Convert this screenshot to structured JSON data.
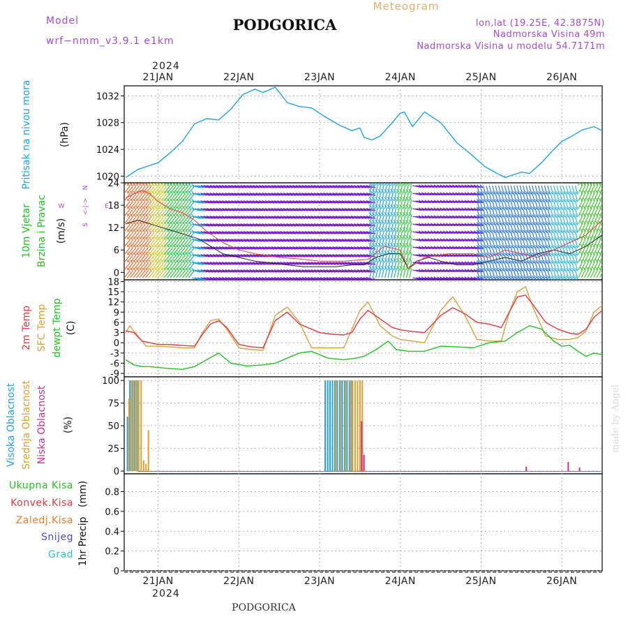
{
  "header": {
    "model_label": "Model",
    "model_name": "wrf−nmm_v3.9.1  e1km",
    "title": "PODGORICA",
    "meteogram_label": "Meteogram",
    "lonlat": "lon,lat (19.25E, 42.3875N)",
    "elevation": "Nadmorska Visina 49m",
    "model_elevation": "Nadmorska Visina u modelu 54.7171m",
    "bottom_title": "PODGORICA",
    "watermark": "made by Angel"
  },
  "time_axis": {
    "year": "2024",
    "days": [
      "21JAN",
      "22JAN",
      "23JAN",
      "24JAN",
      "25JAN",
      "26JAN"
    ],
    "x_range_days": [
      20.58,
      26.5
    ]
  },
  "panel_labels": {
    "pressure": [
      "Pritisak na nivou mora",
      "(hPa)"
    ],
    "wind": [
      "10m Vjetar",
      "Brzina i Pravac",
      "(m/s)"
    ],
    "compass": [
      "N",
      "<-|->",
      "S",
      "W",
      "E"
    ],
    "temp": [
      "2m Temp",
      "SFC Temp",
      "dewpt Temp",
      "(C)"
    ],
    "cloud": [
      "Visoka Oblacnost",
      "Srednja Oblacnost",
      "Niska Oblacnost",
      "(%)"
    ],
    "precip_legend": [
      "Ukupna Kisa",
      "Konvek.Kisa",
      "Zaledj.Kisa",
      "Snijeg",
      "Grad"
    ],
    "precip_axis": [
      "1hr Precip",
      "(mm)"
    ]
  },
  "colors": {
    "pressure": "#1ea4e6",
    "t2m": "#e8383d",
    "tsfc": "#dca03a",
    "dewpt": "#20c520",
    "cloud_high": "#22a0e8",
    "cloud_mid": "#e0a030",
    "cloud_low": "#d22d8c",
    "wind_speed": "#222222",
    "legend_green": "#20c520",
    "legend_red": "#e8383d",
    "legend_orange": "#f07c28",
    "legend_blue": "#4848e8",
    "legend_cyan": "#25c8c8",
    "purple": "#a64ad6"
  },
  "chart_data": [
    {
      "type": "line",
      "panel": "pressure",
      "ylabel": "(hPa)",
      "ylim": [
        1019,
        1033.5
      ],
      "yticks": [
        1020,
        1024,
        1028,
        1032
      ],
      "series": [
        {
          "name": "Pritisak na nivou mora",
          "x": [
            20.6,
            20.65,
            20.75,
            20.85,
            21.0,
            21.15,
            21.3,
            21.45,
            21.6,
            21.75,
            21.9,
            22.05,
            22.2,
            22.3,
            22.45,
            22.6,
            22.75,
            22.9,
            23.05,
            23.25,
            23.4,
            23.5,
            23.55,
            23.65,
            23.75,
            23.9,
            24.0,
            24.05,
            24.15,
            24.3,
            24.5,
            24.7,
            24.9,
            25.05,
            25.2,
            25.3,
            25.4,
            25.5,
            25.6,
            25.75,
            25.9,
            26.0,
            26.1,
            26.25,
            26.4,
            26.5
          ],
          "values": [
            1019.8,
            1020.2,
            1021.0,
            1021.4,
            1022.0,
            1023.5,
            1025.2,
            1027.8,
            1028.6,
            1028.4,
            1030.0,
            1032.2,
            1033.0,
            1032.5,
            1033.3,
            1031.0,
            1030.4,
            1030.2,
            1029.0,
            1027.6,
            1026.8,
            1027.2,
            1025.8,
            1025.4,
            1026.0,
            1028.0,
            1029.4,
            1029.6,
            1027.4,
            1029.6,
            1028.0,
            1025.0,
            1023.0,
            1021.4,
            1020.4,
            1019.8,
            1020.2,
            1020.6,
            1020.4,
            1022.0,
            1024.0,
            1025.2,
            1025.8,
            1026.9,
            1027.4,
            1026.8
          ]
        }
      ]
    },
    {
      "type": "line",
      "panel": "wind",
      "ylabel": "(m/s)",
      "ylim": [
        -2,
        24
      ],
      "yticks": [
        0,
        6,
        12,
        18,
        24
      ],
      "series": [
        {
          "name": "10m wind speed",
          "x": [
            20.6,
            20.75,
            20.9,
            21.05,
            21.2,
            21.35,
            21.5,
            21.65,
            21.8,
            22.0,
            22.2,
            22.4,
            22.6,
            22.8,
            23.0,
            23.2,
            23.4,
            23.55,
            23.7,
            23.85,
            24.0,
            24.1,
            24.2,
            24.35,
            24.5,
            24.7,
            24.9,
            25.1,
            25.3,
            25.5,
            25.7,
            25.9,
            26.1,
            26.3,
            26.5
          ],
          "values": [
            13,
            14,
            13,
            12,
            11,
            10,
            9,
            7,
            5,
            4,
            3,
            2.5,
            2,
            1.5,
            1.5,
            1.5,
            2,
            2,
            4,
            5,
            5,
            1,
            3,
            4,
            3,
            2,
            2,
            3,
            4,
            3,
            5,
            6,
            5,
            7,
            10
          ]
        },
        {
          "name": "wind gust",
          "x": [
            20.6,
            20.7,
            20.8,
            20.9,
            21.0,
            21.15,
            21.3,
            21.45,
            21.6,
            21.8,
            22.0,
            22.2,
            22.5,
            22.8,
            23.0,
            23.3,
            23.6,
            23.8,
            24.0,
            24.1,
            24.3,
            24.6,
            24.9,
            25.1,
            25.3,
            25.5,
            25.7,
            25.9,
            26.1,
            26.3,
            26.5
          ],
          "values": [
            20,
            21,
            22,
            21,
            19,
            17,
            16,
            14,
            11,
            8,
            6,
            5,
            4,
            3.5,
            3,
            3,
            3.5,
            7,
            6,
            1,
            4,
            5,
            5,
            4,
            6,
            5,
            4,
            6,
            8,
            10,
            14
          ]
        }
      ]
    },
    {
      "type": "line",
      "panel": "temperature",
      "ylabel": "(C)",
      "ylim": [
        -10,
        18.5
      ],
      "yticks": [
        -9,
        -6,
        -3,
        0,
        3,
        6,
        9,
        12,
        15,
        18
      ],
      "series": [
        {
          "name": "2m Temp",
          "x": [
            20.6,
            20.7,
            20.8,
            20.9,
            21.0,
            21.15,
            21.3,
            21.45,
            21.55,
            21.65,
            21.75,
            21.85,
            22.0,
            22.15,
            22.3,
            22.45,
            22.6,
            22.75,
            22.9,
            23.0,
            23.15,
            23.3,
            23.4,
            23.5,
            23.6,
            23.75,
            23.9,
            24.0,
            24.15,
            24.3,
            24.5,
            24.65,
            24.8,
            24.95,
            25.1,
            25.25,
            25.35,
            25.45,
            25.55,
            25.65,
            25.8,
            25.95,
            26.1,
            26.2,
            26.3,
            26.4,
            26.5
          ],
          "values": [
            3.5,
            3.0,
            0.5,
            0,
            -0.5,
            -0.5,
            -0.8,
            -1.0,
            2.5,
            5.5,
            6.5,
            4.5,
            -0.5,
            -1.2,
            -1.5,
            6.5,
            9.0,
            5.5,
            4.0,
            3.0,
            2.5,
            2.3,
            3.0,
            7.0,
            9.5,
            7.0,
            4.5,
            3.8,
            3.3,
            3.0,
            8.0,
            10.3,
            8.5,
            6.0,
            5.5,
            4.5,
            9.0,
            13.5,
            14.0,
            11.0,
            6.0,
            4.0,
            2.8,
            2.5,
            4.0,
            7.5,
            9.5
          ]
        },
        {
          "name": "SFC Temp",
          "x": [
            20.6,
            20.65,
            20.75,
            20.85,
            21.0,
            21.15,
            21.3,
            21.45,
            21.55,
            21.65,
            21.75,
            21.85,
            22.0,
            22.15,
            22.3,
            22.45,
            22.6,
            22.75,
            22.9,
            23.0,
            23.15,
            23.3,
            23.4,
            23.5,
            23.6,
            23.75,
            23.9,
            24.0,
            24.15,
            24.3,
            24.5,
            24.65,
            24.8,
            24.95,
            25.1,
            25.25,
            25.35,
            25.45,
            25.55,
            25.65,
            25.8,
            25.95,
            26.1,
            26.2,
            26.3,
            26.4,
            26.5
          ],
          "values": [
            3.0,
            5.0,
            2.0,
            -1.0,
            -1.0,
            -1.2,
            -1.5,
            -1.5,
            3.0,
            6.5,
            7.0,
            4.0,
            -1.5,
            -2.0,
            -2.2,
            8.0,
            10.5,
            6.0,
            -1.5,
            -1.5,
            -1.5,
            -1.5,
            4.0,
            9.5,
            12.0,
            5.0,
            2.0,
            1.0,
            0.5,
            0.0,
            9.5,
            13.5,
            8.0,
            1.0,
            0.5,
            0.5,
            9.0,
            15.0,
            16.5,
            10.0,
            2.0,
            1.0,
            1.0,
            1.5,
            3.5,
            9.0,
            11.0
          ]
        },
        {
          "name": "dewpt Temp",
          "x": [
            20.6,
            20.7,
            20.8,
            20.9,
            21.1,
            21.3,
            21.45,
            21.6,
            21.75,
            21.9,
            22.1,
            22.3,
            22.45,
            22.6,
            22.75,
            22.9,
            23.1,
            23.3,
            23.45,
            23.55,
            23.7,
            23.85,
            23.95,
            24.1,
            24.3,
            24.5,
            24.7,
            24.9,
            25.1,
            25.3,
            25.45,
            25.6,
            25.75,
            25.9,
            26.0,
            26.1,
            26.2,
            26.3,
            26.4,
            26.5
          ],
          "values": [
            -5.0,
            -6.5,
            -7.0,
            -7.0,
            -7.5,
            -7.8,
            -7.0,
            -5.0,
            -3.0,
            -6.0,
            -6.8,
            -6.5,
            -6.0,
            -4.5,
            -3.0,
            -2.5,
            -4.5,
            -5.0,
            -4.5,
            -4.0,
            -2.0,
            0.5,
            -2.0,
            -2.5,
            -2.5,
            -1.0,
            -1.2,
            -1.5,
            0.0,
            0.5,
            3.0,
            5.0,
            4.0,
            0.5,
            -1.0,
            -0.8,
            -2.5,
            -4.0,
            -3.0,
            -3.5
          ]
        }
      ]
    },
    {
      "type": "bar",
      "panel": "cloud",
      "ylabel": "(%)",
      "ylim": [
        -3,
        104
      ],
      "yticks": [
        0,
        25,
        50,
        75,
        100
      ],
      "series": [
        {
          "name": "Visoka Oblacnost",
          "x": [
            20.62,
            20.65,
            20.68,
            20.71,
            20.74,
            23.07,
            23.1,
            23.13,
            23.16,
            23.19,
            23.22,
            23.25,
            23.28,
            23.31,
            23.34,
            23.37,
            23.4
          ],
          "values": [
            60,
            100,
            100,
            100,
            100,
            100,
            100,
            100,
            100,
            100,
            100,
            100,
            100,
            100,
            100,
            100,
            100
          ]
        },
        {
          "name": "Srednja Oblacnost",
          "x": [
            20.64,
            20.67,
            20.7,
            20.73,
            20.76,
            20.79,
            20.82,
            20.85,
            20.88,
            23.2,
            23.26,
            23.32,
            23.38,
            23.41,
            23.44,
            23.47,
            23.5,
            23.53
          ],
          "values": [
            80,
            100,
            100,
            100,
            100,
            100,
            12,
            8,
            45,
            100,
            100,
            100,
            100,
            100,
            100,
            100,
            100,
            100
          ]
        },
        {
          "name": "Niska Oblacnost",
          "x": [
            23.52,
            23.55,
            25.56,
            26.08,
            26.22
          ],
          "values": [
            55,
            18,
            5,
            10,
            4
          ]
        }
      ]
    },
    {
      "type": "bar",
      "panel": "precip",
      "ylabel": "1hr Precip (mm)",
      "ylim": [
        0,
        0.98
      ],
      "yticks": [
        0,
        0.2,
        0.4,
        0.6,
        0.8
      ],
      "series": [
        {
          "name": "Ukupna Kisa",
          "x": [],
          "values": []
        },
        {
          "name": "Konvek.Kisa",
          "x": [],
          "values": []
        },
        {
          "name": "Zaledj.Kisa",
          "x": [],
          "values": []
        },
        {
          "name": "Snijeg",
          "x": [],
          "values": []
        },
        {
          "name": "Grad",
          "x": [],
          "values": []
        }
      ]
    }
  ]
}
